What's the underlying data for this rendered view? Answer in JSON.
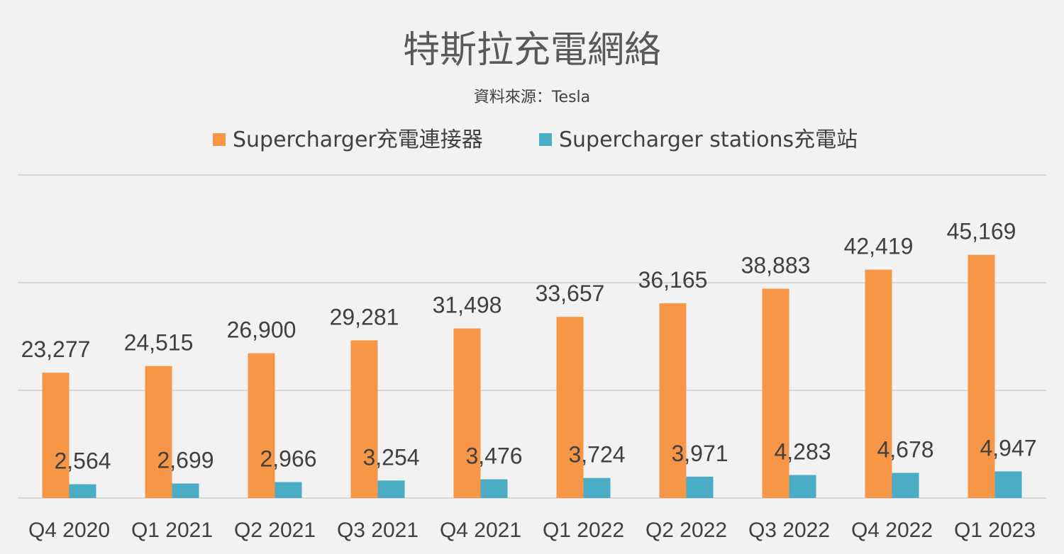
{
  "chart_data": {
    "type": "bar",
    "title": "特斯拉充電網絡",
    "subtitle": "資料來源：Tesla",
    "xlabel": "",
    "ylabel": "",
    "ylim": [
      0,
      60000
    ],
    "grid": true,
    "legend_position": "top",
    "categories": [
      "Q4 2020",
      "Q1 2021",
      "Q2 2021",
      "Q3 2021",
      "Q4 2021",
      "Q1 2022",
      "Q2 2022",
      "Q3 2022",
      "Q4 2022",
      "Q1 2023"
    ],
    "series": [
      {
        "name": "Supercharger充電連接器",
        "color": "#f79646",
        "values": [
          23277,
          24515,
          26900,
          29281,
          31498,
          33657,
          36165,
          38883,
          42419,
          45169
        ],
        "labels": [
          "23,277",
          "24,515",
          "26,900",
          "29,281",
          "31,498",
          "33,657",
          "36,165",
          "38,883",
          "42,419",
          "45,169"
        ]
      },
      {
        "name": "Supercharger stations充電站",
        "color": "#4bacc6",
        "values": [
          2564,
          2699,
          2966,
          3254,
          3476,
          3724,
          3971,
          4283,
          4678,
          4947
        ],
        "labels": [
          "2,564",
          "2,699",
          "2,966",
          "3,254",
          "3,476",
          "3,724",
          "3,971",
          "4,283",
          "4,678",
          "4,947"
        ]
      }
    ]
  }
}
